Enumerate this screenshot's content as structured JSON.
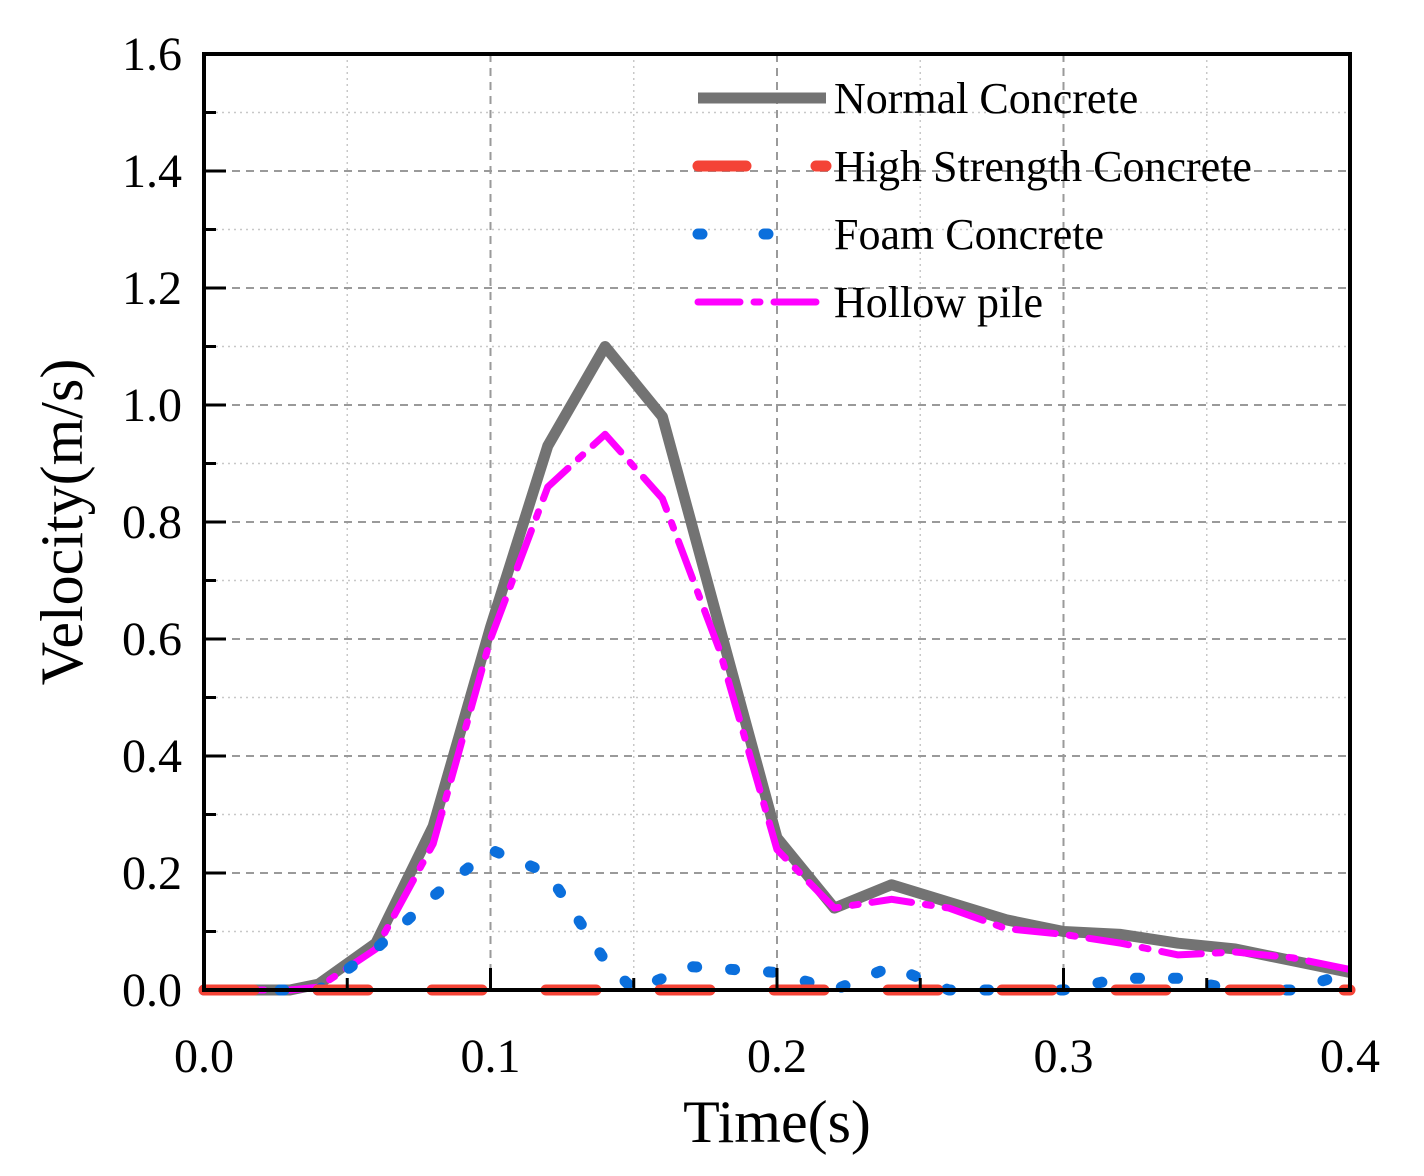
{
  "chart_data": {
    "type": "line",
    "title": "",
    "xlabel": "Time(s)",
    "ylabel": "Velocity(m/s)",
    "xlim": [
      0.0,
      0.4
    ],
    "ylim": [
      0.0,
      1.6
    ],
    "x_ticks": [
      0.0,
      0.1,
      0.2,
      0.3,
      0.4
    ],
    "x_tick_labels": [
      "0.0",
      "0.1",
      "0.2",
      "0.3",
      "0.4"
    ],
    "y_ticks": [
      0.0,
      0.2,
      0.4,
      0.6,
      0.8,
      1.0,
      1.2,
      1.4,
      1.6
    ],
    "y_tick_labels": [
      "0.0",
      "0.2",
      "0.4",
      "0.6",
      "0.8",
      "1.0",
      "1.2",
      "1.4",
      "1.6"
    ],
    "grid": true,
    "legend_position": "top-right",
    "series": [
      {
        "name": "Normal Concrete",
        "color": "#737373",
        "style": "solid",
        "x": [
          0.0,
          0.03,
          0.04,
          0.06,
          0.08,
          0.1,
          0.12,
          0.14,
          0.16,
          0.18,
          0.2,
          0.22,
          0.24,
          0.26,
          0.28,
          0.3,
          0.32,
          0.34,
          0.36,
          0.38,
          0.4
        ],
        "values": [
          0.0,
          0.0,
          0.01,
          0.08,
          0.28,
          0.62,
          0.93,
          1.1,
          0.98,
          0.62,
          0.26,
          0.14,
          0.18,
          0.15,
          0.12,
          0.1,
          0.095,
          0.08,
          0.07,
          0.05,
          0.03
        ]
      },
      {
        "name": "High Strength Concrete",
        "color": "#f44336",
        "style": "dash-dot",
        "x": [
          0.0,
          0.1,
          0.2,
          0.3,
          0.4
        ],
        "values": [
          0.0,
          0.0,
          0.0,
          0.0,
          0.0
        ]
      },
      {
        "name": "Foam Concrete",
        "color": "#0b6fdc",
        "style": "dotted",
        "x": [
          0.0,
          0.02,
          0.04,
          0.06,
          0.08,
          0.1,
          0.12,
          0.14,
          0.15,
          0.17,
          0.2,
          0.22,
          0.24,
          0.26,
          0.28,
          0.3,
          0.32,
          0.34,
          0.36,
          0.38,
          0.4
        ],
        "values": [
          0.0,
          0.0,
          0.0,
          0.07,
          0.16,
          0.24,
          0.2,
          0.05,
          0.0,
          0.04,
          0.03,
          0.0,
          0.04,
          0.0,
          0.0,
          0.0,
          0.02,
          0.02,
          0.0,
          0.0,
          0.03
        ]
      },
      {
        "name": "Hollow pile",
        "color": "#ff00ff",
        "style": "dash-dot",
        "x": [
          0.0,
          0.03,
          0.04,
          0.06,
          0.08,
          0.1,
          0.12,
          0.14,
          0.16,
          0.18,
          0.2,
          0.22,
          0.24,
          0.26,
          0.28,
          0.3,
          0.32,
          0.34,
          0.36,
          0.38,
          0.4
        ],
        "values": [
          0.0,
          0.0,
          0.005,
          0.07,
          0.25,
          0.6,
          0.86,
          0.95,
          0.84,
          0.58,
          0.24,
          0.14,
          0.155,
          0.14,
          0.105,
          0.095,
          0.08,
          0.06,
          0.065,
          0.055,
          0.035
        ]
      }
    ]
  }
}
